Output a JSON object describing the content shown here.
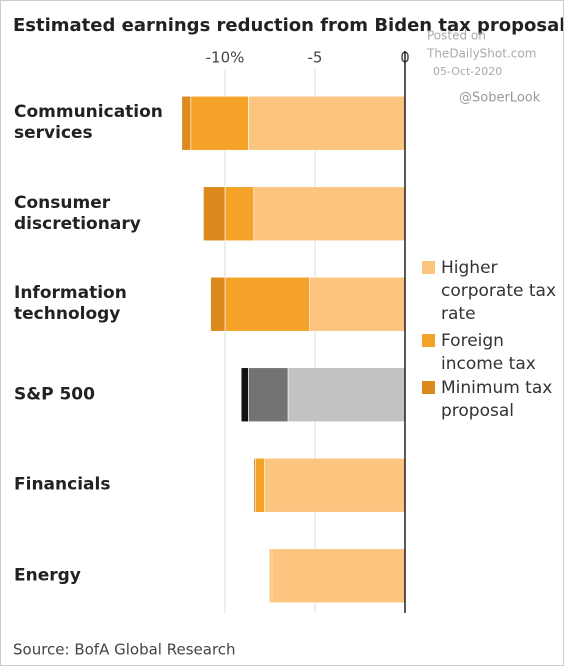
{
  "chart_data": {
    "type": "stacked-bar-horizontal",
    "title": "Estimated earnings reduction from Biden tax proposals",
    "watermark": [
      "Posted on",
      "TheDailyShot.com",
      "05-Oct-2020",
      "@SoberLook"
    ],
    "source": "Source: BofA Global Research",
    "categories": [
      "Communication services",
      "Consumer discretionary",
      "Information technology",
      "S&P 500",
      "Financials",
      "Energy"
    ],
    "series": [
      {
        "name": "Higher corporate tax rate",
        "color": "#fbc57f",
        "point_colors": [
          "#fbc57f",
          "#fbc57f",
          "#fbc57f",
          "#c2c2c2",
          "#fbc57f",
          "#fbc57f"
        ],
        "values": [
          -8.7,
          -8.4,
          -5.3,
          -6.5,
          -7.8,
          -7.4
        ]
      },
      {
        "name": "Foreign income tax",
        "color": "#f5a228",
        "point_colors": [
          "#f5a228",
          "#f5a228",
          "#f5a228",
          "#737373",
          "#f5a228",
          "#f5a228"
        ],
        "values": [
          -3.2,
          -1.6,
          -4.7,
          -2.2,
          -0.5,
          -0.1
        ]
      },
      {
        "name": "Minimum tax proposal",
        "color": "#dc8a1d",
        "point_colors": [
          "#dc8a1d",
          "#dc8a1d",
          "#dc8a1d",
          "#111111",
          "#dc8a1d",
          "#dc8a1d"
        ],
        "values": [
          -0.5,
          -1.2,
          -0.8,
          -0.4,
          -0.1,
          -0.05
        ]
      }
    ],
    "xlim": [
      -13,
      0
    ],
    "xticks": [
      {
        "value": -10,
        "label": "-10%"
      },
      -5,
      0
    ],
    "grid": true,
    "legend": "right"
  }
}
